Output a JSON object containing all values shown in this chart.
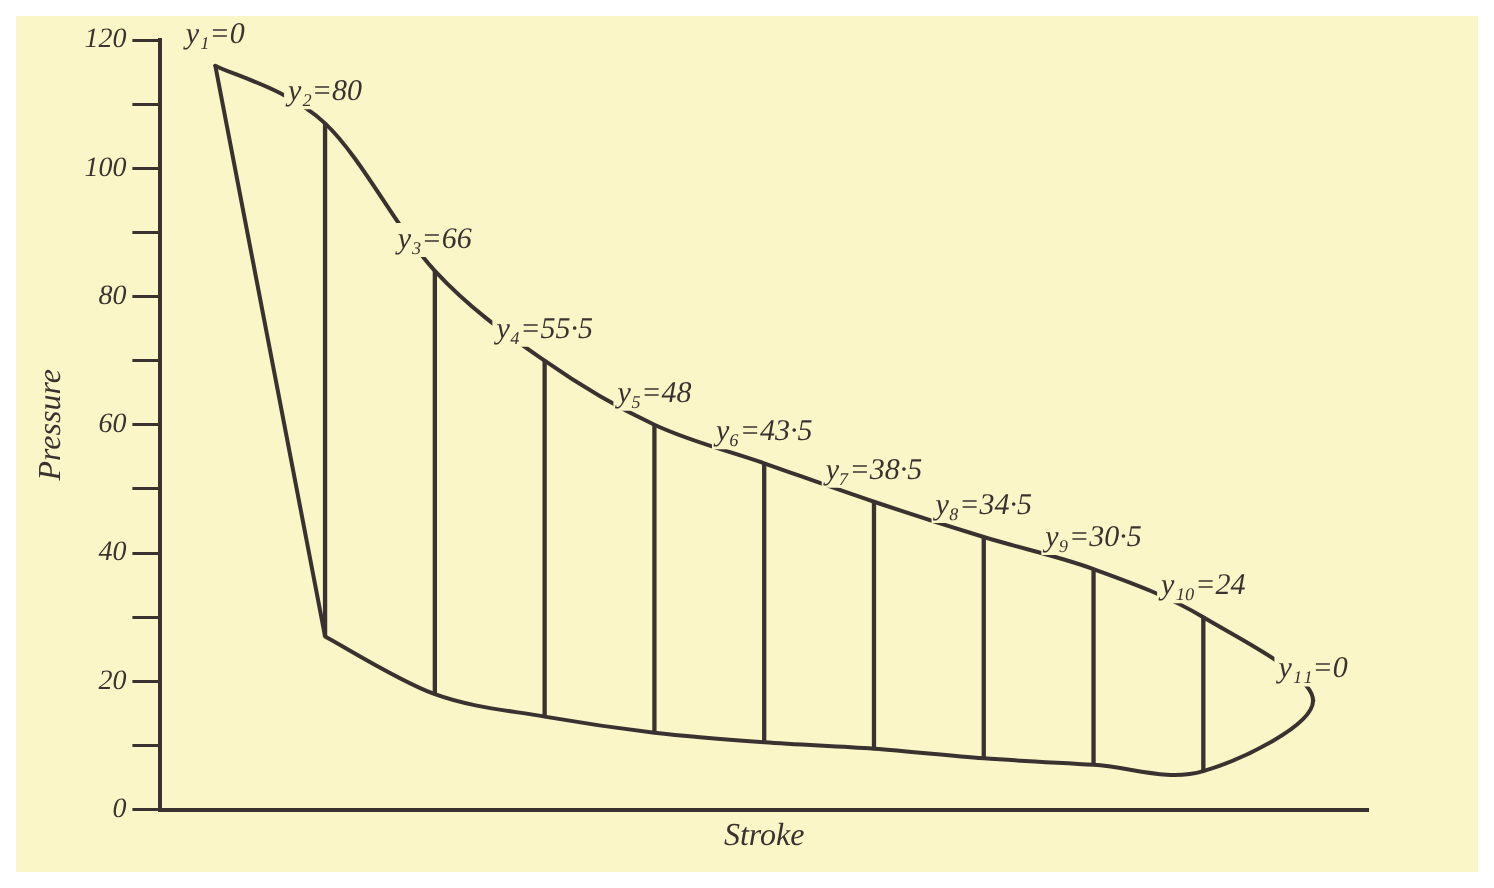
{
  "chart_data": {
    "type": "bar",
    "xlabel": "Stroke",
    "ylabel": "Pressure",
    "categories": [
      null,
      null,
      null,
      null,
      null,
      null,
      null,
      null,
      null,
      null,
      null
    ],
    "values": [
      0,
      80,
      66,
      55.5,
      48,
      43.5,
      38.5,
      34.5,
      30.5,
      24,
      0
    ],
    "base": [
      116,
      27,
      18,
      14.5,
      12,
      10.5,
      9.5,
      8,
      7,
      6,
      17
    ],
    "color": "#3a3230",
    "value_labels": [
      "y₁=0",
      "y₂=80",
      "y₃=66",
      "y₄=55·5",
      "y₅=48",
      "y₆=43·5",
      "y₇=38·5",
      "y₈=34·5",
      "y₉=30·5",
      "y₁₀=24",
      "y₁₁=0"
    ],
    "ylim": [
      0,
      120
    ],
    "yticks": [
      0,
      {
        "value": 10,
        "label": null
      },
      20,
      {
        "value": 30,
        "label": null
      },
      40,
      {
        "value": 50,
        "label": null
      },
      60,
      {
        "value": 70,
        "label": null
      },
      80,
      {
        "value": 90,
        "label": null
      },
      100,
      {
        "value": 110,
        "label": null
      },
      120
    ],
    "tick_labels": "y",
    "grid": false,
    "legend": false
  }
}
